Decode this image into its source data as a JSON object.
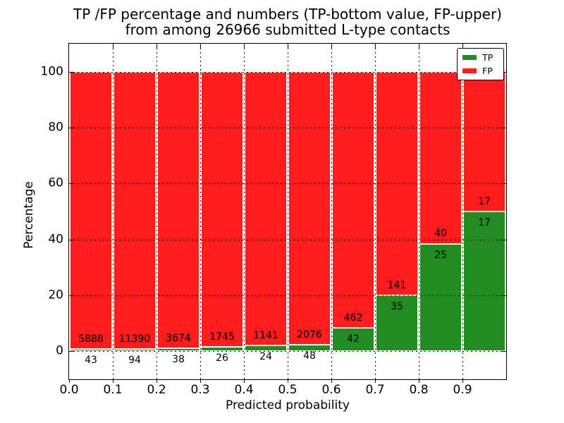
{
  "chart_data": {
    "type": "bar",
    "stacked": true,
    "title_line1": "TP /FP percentage and numbers (TP-bottom value, FP-upper)",
    "title_line2": "from among 26966 submitted L-type contacts",
    "xlabel": "Predicted probability",
    "ylabel": "Percentage",
    "xlim": [
      0.0,
      1.0
    ],
    "ylim": [
      -10,
      110
    ],
    "xticks": [
      "0.0",
      "0.1",
      "0.2",
      "0.3",
      "0.4",
      "0.5",
      "0.6",
      "0.7",
      "0.8",
      "0.9"
    ],
    "yticks": [
      "0",
      "20",
      "40",
      "60",
      "80",
      "100"
    ],
    "ytick_values": [
      0,
      20,
      40,
      60,
      80,
      100
    ],
    "grid": "dotted",
    "bin_width": 0.1,
    "bins": [
      {
        "x0": 0.0,
        "x1": 0.1,
        "tp_count": 43,
        "fp_count": 5888,
        "tp_percent": 0.73,
        "fp_percent": 99.27
      },
      {
        "x0": 0.1,
        "x1": 0.2,
        "tp_count": 94,
        "fp_count": 11390,
        "tp_percent": 0.82,
        "fp_percent": 99.18
      },
      {
        "x0": 0.2,
        "x1": 0.3,
        "tp_count": 38,
        "fp_count": 3674,
        "tp_percent": 1.02,
        "fp_percent": 98.98
      },
      {
        "x0": 0.3,
        "x1": 0.4,
        "tp_count": 26,
        "fp_count": 1745,
        "tp_percent": 1.47,
        "fp_percent": 98.53
      },
      {
        "x0": 0.4,
        "x1": 0.5,
        "tp_count": 24,
        "fp_count": 1141,
        "tp_percent": 2.06,
        "fp_percent": 97.94
      },
      {
        "x0": 0.5,
        "x1": 0.6,
        "tp_count": 48,
        "fp_count": 2076,
        "tp_percent": 2.26,
        "fp_percent": 97.74
      },
      {
        "x0": 0.6,
        "x1": 0.7,
        "tp_count": 42,
        "fp_count": 462,
        "tp_percent": 8.33,
        "fp_percent": 91.67
      },
      {
        "x0": 0.7,
        "x1": 0.8,
        "tp_count": 35,
        "fp_count": 141,
        "tp_percent": 19.89,
        "fp_percent": 80.11
      },
      {
        "x0": 0.8,
        "x1": 0.9,
        "tp_count": 25,
        "fp_count": 40,
        "tp_percent": 38.46,
        "fp_percent": 61.54
      },
      {
        "x0": 0.9,
        "x1": 1.0,
        "tp_count": 17,
        "fp_count": 17,
        "tp_percent": 50.0,
        "fp_percent": 50.0
      }
    ],
    "legend": {
      "position": "upper right",
      "entries": [
        {
          "label": "TP",
          "color": "#228b22"
        },
        {
          "label": "FP",
          "color": "#ff1c1c"
        }
      ]
    },
    "colors": {
      "tp": "#228b22",
      "fp": "#ff1c1c",
      "bar_edge": "#ffffff",
      "grid": "#000000",
      "text": "#000000",
      "background": "#ffffff"
    }
  }
}
